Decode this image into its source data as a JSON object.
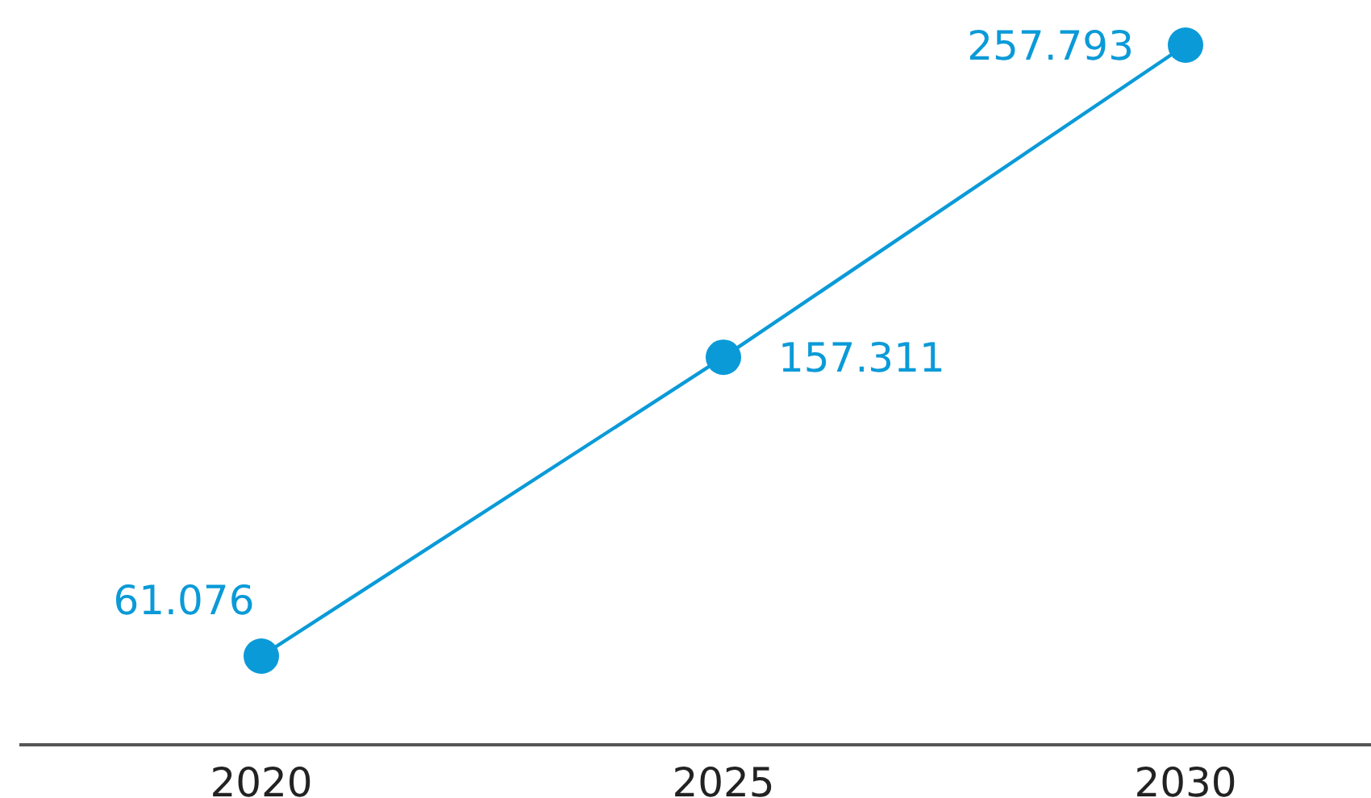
{
  "chart_data": {
    "type": "line",
    "categories": [
      "2020",
      "2025",
      "2030"
    ],
    "series": [
      {
        "color": "#0a9ad8",
        "values": [
          61.076,
          157.311,
          257.793
        ]
      }
    ],
    "data_labels": true,
    "marker": "circle",
    "line_style": "solid",
    "tick_labels": "x"
  }
}
